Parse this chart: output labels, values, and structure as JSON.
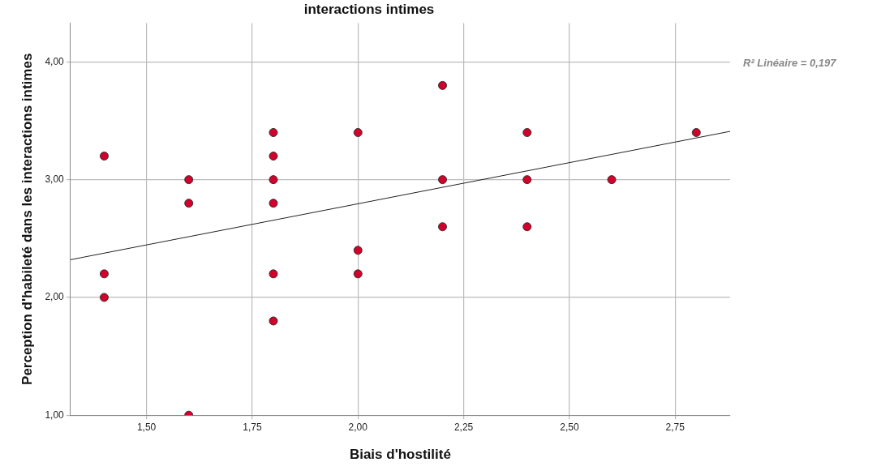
{
  "chart_data": {
    "type": "scatter",
    "title": "interactions intimes",
    "xlabel": "Biais d'hostilité",
    "ylabel": "Perception d'habileté dans les interactions intimes",
    "annotations": [
      "R² Linéaire = 0,197"
    ],
    "series": [
      {
        "color": "#d2002a",
        "x": [
          1.4,
          1.4,
          1.4,
          1.6,
          1.6,
          1.6,
          1.8,
          1.8,
          1.8,
          1.8,
          1.8,
          1.8,
          2.0,
          2.0,
          2.0,
          2.2,
          2.2,
          2.2,
          2.4,
          2.4,
          2.4,
          2.6,
          2.8
        ],
        "values": [
          3.2,
          2.2,
          2.0,
          3.0,
          2.8,
          1.0,
          3.4,
          3.2,
          3.0,
          2.8,
          2.2,
          1.8,
          3.4,
          2.4,
          2.2,
          3.8,
          3.0,
          2.6,
          3.4,
          3.0,
          2.6,
          3.0,
          3.4
        ]
      },
      {
        "type": "line",
        "color": "#222222",
        "x": [
          1.32,
          2.88
        ],
        "values": [
          2.32,
          3.41
        ],
        "marker": "none"
      }
    ],
    "xlim": [
      1.32,
      2.88
    ],
    "ylim": [
      1.0,
      4.33
    ],
    "xticks": [
      {
        "value": 1.5,
        "label": "1,50"
      },
      {
        "value": 1.75,
        "label": "1,75"
      },
      {
        "value": 2.0,
        "label": "2,00"
      },
      {
        "value": 2.25,
        "label": "2,25"
      },
      {
        "value": 2.5,
        "label": "2,50"
      },
      {
        "value": 2.75,
        "label": "2,75"
      }
    ],
    "yticks": [
      {
        "value": 1.0,
        "label": "1,00"
      },
      {
        "value": 2.0,
        "label": "2,00"
      },
      {
        "value": 3.0,
        "label": "3,00"
      },
      {
        "value": 4.0,
        "label": "4,00"
      }
    ],
    "grid": true,
    "legend": false,
    "marker": "circle"
  }
}
